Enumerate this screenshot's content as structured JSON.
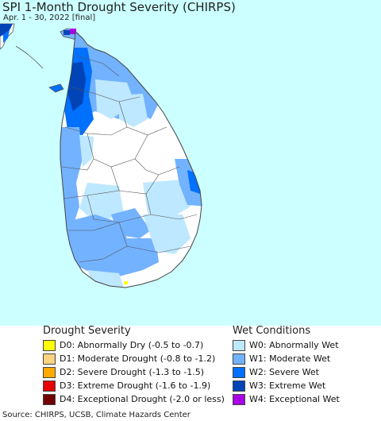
{
  "header": {
    "title": "SPI 1-Month Drought Severity (CHIRPS)",
    "subtitle": "Apr. 1 - 30, 2022 [final]"
  },
  "legend": {
    "drought": {
      "title": "Drought Severity",
      "items": [
        {
          "label": "D0: Abnormally Dry (-0.5 to -0.7)",
          "color": "#ffff00"
        },
        {
          "label": "D1: Moderate Drought (-0.8 to -1.2)",
          "color": "#fcd37f"
        },
        {
          "label": "D2: Severe Drought (-1.3 to -1.5)",
          "color": "#ffaa00"
        },
        {
          "label": "D3: Extreme Drought (-1.6 to -1.9)",
          "color": "#e60000"
        },
        {
          "label": "D4: Exceptional Drought (-2.0 or less)",
          "color": "#730000"
        }
      ]
    },
    "wet": {
      "title": "Wet Conditions",
      "items": [
        {
          "label": "W0: Abnormally Wet",
          "color": "#bee8ff"
        },
        {
          "label": "W1: Moderate Wet",
          "color": "#73b2ff"
        },
        {
          "label": "W2: Severe Wet",
          "color": "#0070ff"
        },
        {
          "label": "W3: Extreme Wet",
          "color": "#0044b8"
        },
        {
          "label": "W4: Exceptional Wet",
          "color": "#a900e6"
        }
      ]
    }
  },
  "colors": {
    "sea": "#ccffff",
    "land": "#ffffff",
    "border": "#555555"
  },
  "footer": {
    "source": "Source: CHIRPS, UCSB, Climate Hazards Center"
  }
}
